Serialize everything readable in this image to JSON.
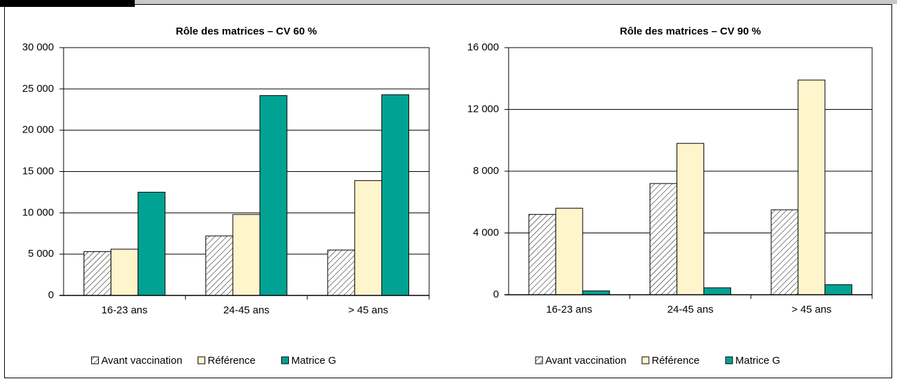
{
  "chart_data": [
    {
      "type": "bar",
      "title": "Rôle des matrices – CV 60 %",
      "categories": [
        "16-23 ans",
        "24-45 ans",
        "> 45 ans"
      ],
      "series": [
        {
          "name": "Avant vaccination",
          "color": "hatch",
          "values": [
            5300,
            7200,
            5500
          ]
        },
        {
          "name": "Référence",
          "color": "#fff5cc",
          "values": [
            5600,
            9800,
            13900
          ]
        },
        {
          "name": "Matrice G",
          "color": "#00a393",
          "values": [
            12500,
            24200,
            24300
          ]
        }
      ],
      "ylim": [
        0,
        30000
      ],
      "yticks": [
        0,
        {
          "value": 5000,
          "label": "5 000"
        },
        {
          "value": 10000,
          "label": "10 000"
        },
        {
          "value": 15000,
          "label": "15 000"
        },
        {
          "value": 20000,
          "label": "20 000"
        },
        {
          "value": 25000,
          "label": "25 000"
        },
        {
          "value": 30000,
          "label": "30 000"
        }
      ],
      "grid": true
    },
    {
      "type": "bar",
      "title": "Rôle des matrices – CV 90 %",
      "categories": [
        "16-23 ans",
        "24-45 ans",
        "> 45 ans"
      ],
      "series": [
        {
          "name": "Avant vaccination",
          "color": "hatch",
          "values": [
            5200,
            7200,
            5500
          ]
        },
        {
          "name": "Référence",
          "color": "#fff5cc",
          "values": [
            5600,
            9800,
            13900
          ]
        },
        {
          "name": "Matrice G",
          "color": "#00a393",
          "values": [
            250,
            450,
            650
          ]
        }
      ],
      "ylim": [
        0,
        16000
      ],
      "yticks": [
        0,
        {
          "value": 4000,
          "label": "4 000"
        },
        {
          "value": 8000,
          "label": "8 000"
        },
        {
          "value": 12000,
          "label": "12 000"
        },
        {
          "value": 16000,
          "label": "16 000"
        }
      ],
      "grid": true
    }
  ]
}
